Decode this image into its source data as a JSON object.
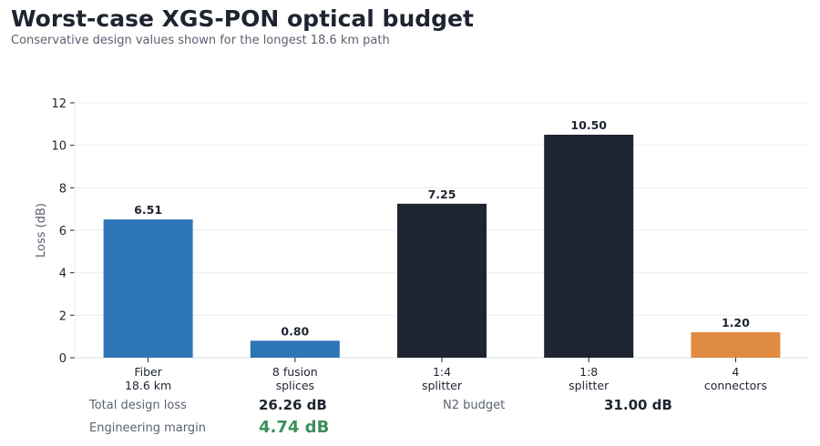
{
  "header": {
    "title": "Worst-case XGS-PON optical budget",
    "subtitle": "Conservative design values shown for the longest 18.6 km path"
  },
  "chart_data": {
    "type": "bar",
    "categories": [
      "Fiber\n18.6 km",
      "8 fusion\nsplices",
      "1:4\nsplitter",
      "1:8\nsplitter",
      "4\nconnectors"
    ],
    "values": [
      6.51,
      0.8,
      7.25,
      10.5,
      1.2
    ],
    "value_labels": [
      "6.51",
      "0.80",
      "7.25",
      "10.50",
      "1.20"
    ],
    "bar_colors": [
      "#2e75b6",
      "#2e75b6",
      "#1e2430",
      "#1e2430",
      "#e08b42"
    ],
    "title": "Worst-case XGS-PON optical budget",
    "subtitle": "Conservative design values shown for the longest 18.6 km path",
    "xlabel": "",
    "ylabel": "Loss (dB)",
    "ylim": [
      0,
      12
    ],
    "yticks": [
      0,
      2,
      4,
      6,
      8,
      10,
      12
    ],
    "grid": true,
    "legend": "none"
  },
  "summary": {
    "total_label": "Total design loss",
    "total_value": "26.26 dB",
    "budget_label": "N2 budget",
    "budget_value": "31.00 dB",
    "margin_label": "Engineering margin",
    "margin_value": "4.74 dB",
    "margin_color": "#3a8f5c"
  }
}
